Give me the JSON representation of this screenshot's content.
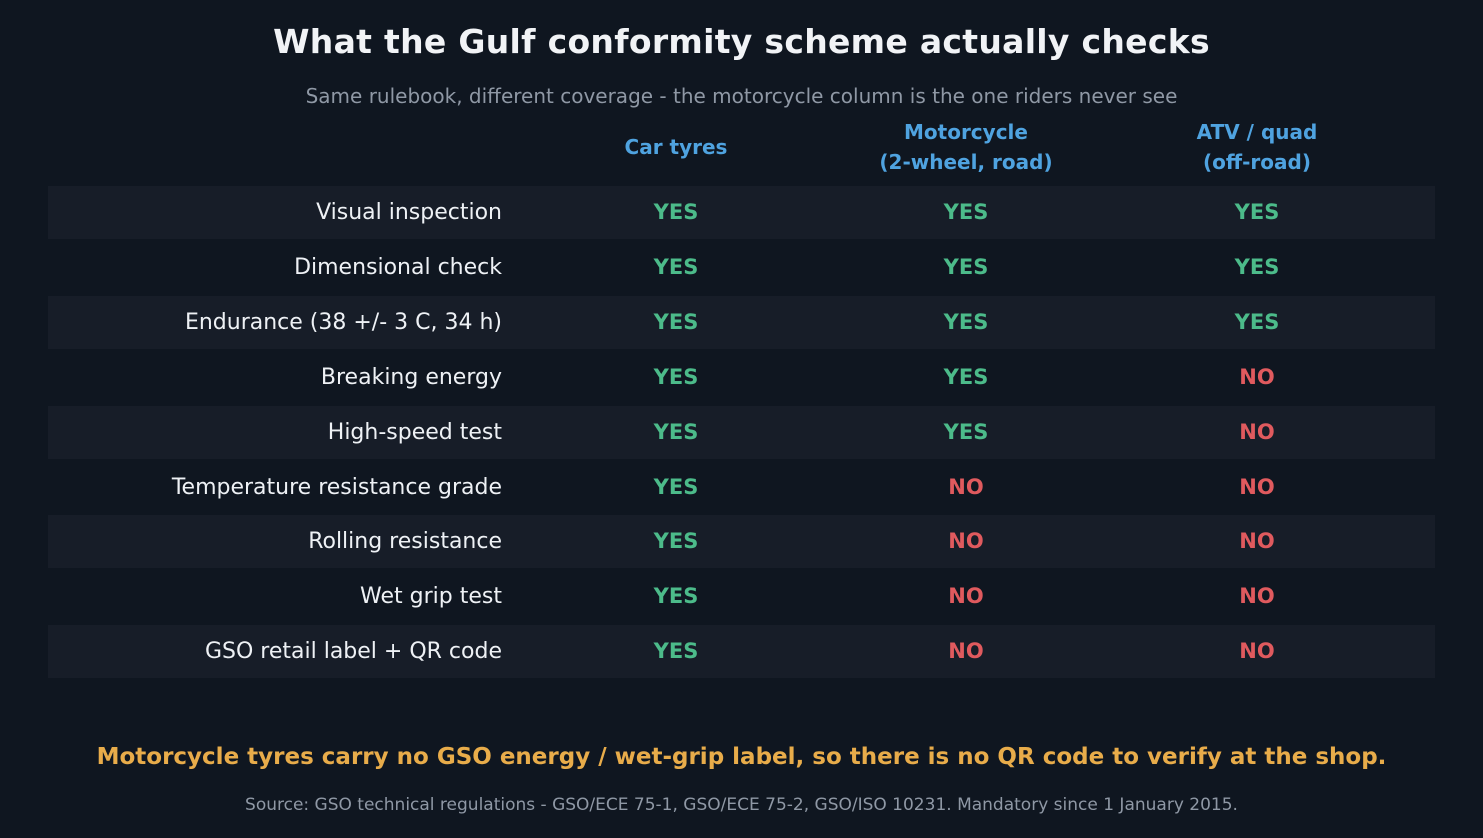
{
  "chart_data": {
    "type": "table",
    "title": "What the Gulf conformity scheme actually checks",
    "subtitle": "Same rulebook, different coverage - the motorcycle column is the one riders never see",
    "columns": [
      "Car tyres",
      "Motorcycle\n(2-wheel, road)",
      "ATV / quad\n(off-road)"
    ],
    "rows": [
      {
        "label": "Visual inspection",
        "values": [
          "YES",
          "YES",
          "YES"
        ]
      },
      {
        "label": "Dimensional check",
        "values": [
          "YES",
          "YES",
          "YES"
        ]
      },
      {
        "label": "Endurance (38 +/- 3 C, 34 h)",
        "values": [
          "YES",
          "YES",
          "YES"
        ]
      },
      {
        "label": "Breaking energy",
        "values": [
          "YES",
          "YES",
          "NO"
        ]
      },
      {
        "label": "High-speed test",
        "values": [
          "YES",
          "YES",
          "NO"
        ]
      },
      {
        "label": "Temperature resistance grade",
        "values": [
          "YES",
          "NO",
          "NO"
        ]
      },
      {
        "label": "Rolling resistance",
        "values": [
          "YES",
          "NO",
          "NO"
        ]
      },
      {
        "label": "Wet grip test",
        "values": [
          "YES",
          "NO",
          "NO"
        ]
      },
      {
        "label": "GSO retail label + QR code",
        "values": [
          "YES",
          "NO",
          "NO"
        ]
      }
    ],
    "callout": "Motorcycle tyres carry no GSO energy / wet-grip label, so there is no QR code to verify at the shop.",
    "source": "Source: GSO technical regulations - GSO/ECE 75-1, GSO/ECE 75-2, GSO/ISO 10231. Mandatory since 1 January 2015."
  },
  "colors": {
    "background": "#0f1620",
    "yes": "#4cbb8a",
    "no": "#e05a5e",
    "column_header": "#4fa3e0",
    "callout": "#e8ac4a"
  }
}
